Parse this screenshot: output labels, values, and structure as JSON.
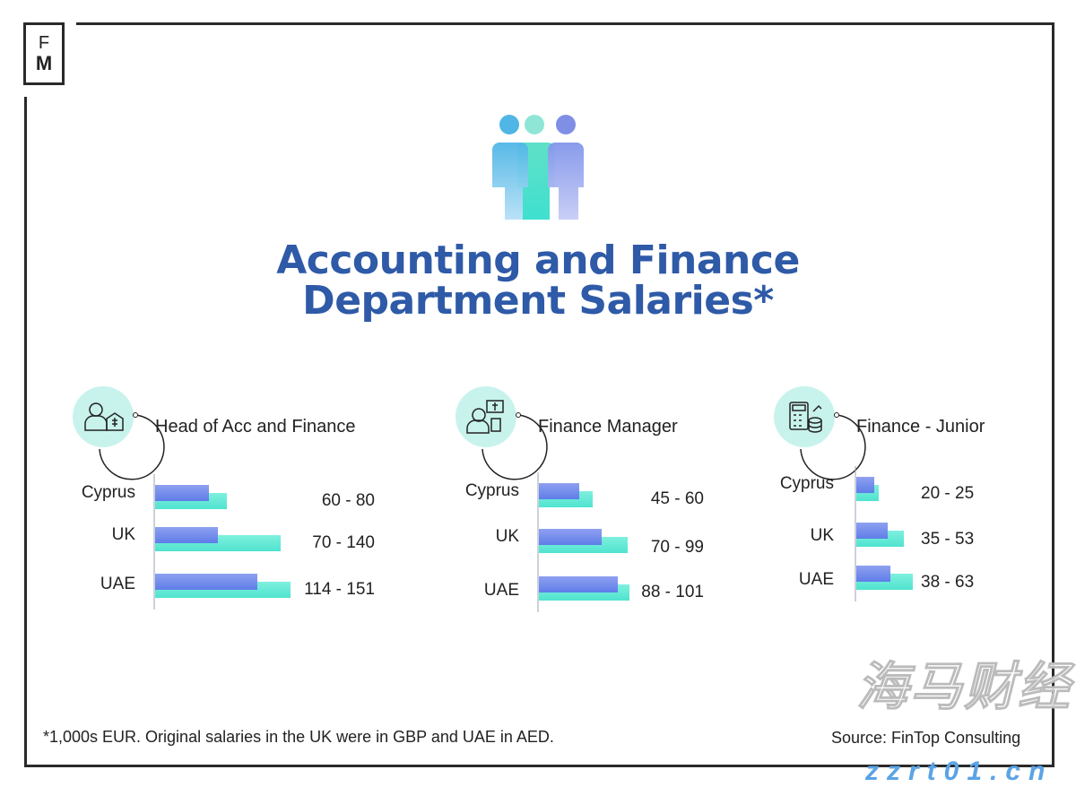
{
  "logo": {
    "top": "F",
    "bottom": "M"
  },
  "title": {
    "line1": "Accounting and Finance",
    "line2": "Department Salaries*"
  },
  "colors": {
    "min_bar": "#5f7de8",
    "max_bar": "#4fe3cf",
    "title": "#2e5aa7",
    "icon_bg": "#c8f3ec"
  },
  "chart_data": [
    {
      "type": "bar",
      "title": "Head of Acc and Finance",
      "icon": "manager-bank-icon",
      "categories": [
        "Cyprus",
        "UK",
        "UAE"
      ],
      "series": [
        {
          "values": [
            60,
            70,
            114
          ]
        },
        {
          "values": [
            80,
            140,
            151
          ]
        }
      ],
      "labels": [
        "60 - 80",
        "70 - 140",
        "114 - 151"
      ]
    },
    {
      "type": "bar",
      "title": "Finance Manager",
      "icon": "manager-presentation-icon",
      "categories": [
        "Cyprus",
        "UK",
        "UAE"
      ],
      "series": [
        {
          "values": [
            45,
            70,
            88
          ]
        },
        {
          "values": [
            60,
            99,
            101
          ]
        }
      ],
      "labels": [
        "45 - 60",
        "70 - 99",
        "88 - 101"
      ]
    },
    {
      "type": "bar",
      "title": "Finance - Junior",
      "icon": "calculator-coins-icon",
      "categories": [
        "Cyprus",
        "UK",
        "UAE"
      ],
      "series": [
        {
          "values": [
            20,
            35,
            38
          ]
        },
        {
          "values": [
            25,
            53,
            63
          ]
        }
      ],
      "labels": [
        "20 - 25",
        "35 - 53",
        "38 - 63"
      ]
    }
  ],
  "footnote": "*1,000s EUR. Original salaries in the UK were in GBP and UAE in AED.",
  "source": "Source: FinTop Consulting",
  "watermark": {
    "text": "海马财经",
    "url": "zzrt01.cn"
  }
}
